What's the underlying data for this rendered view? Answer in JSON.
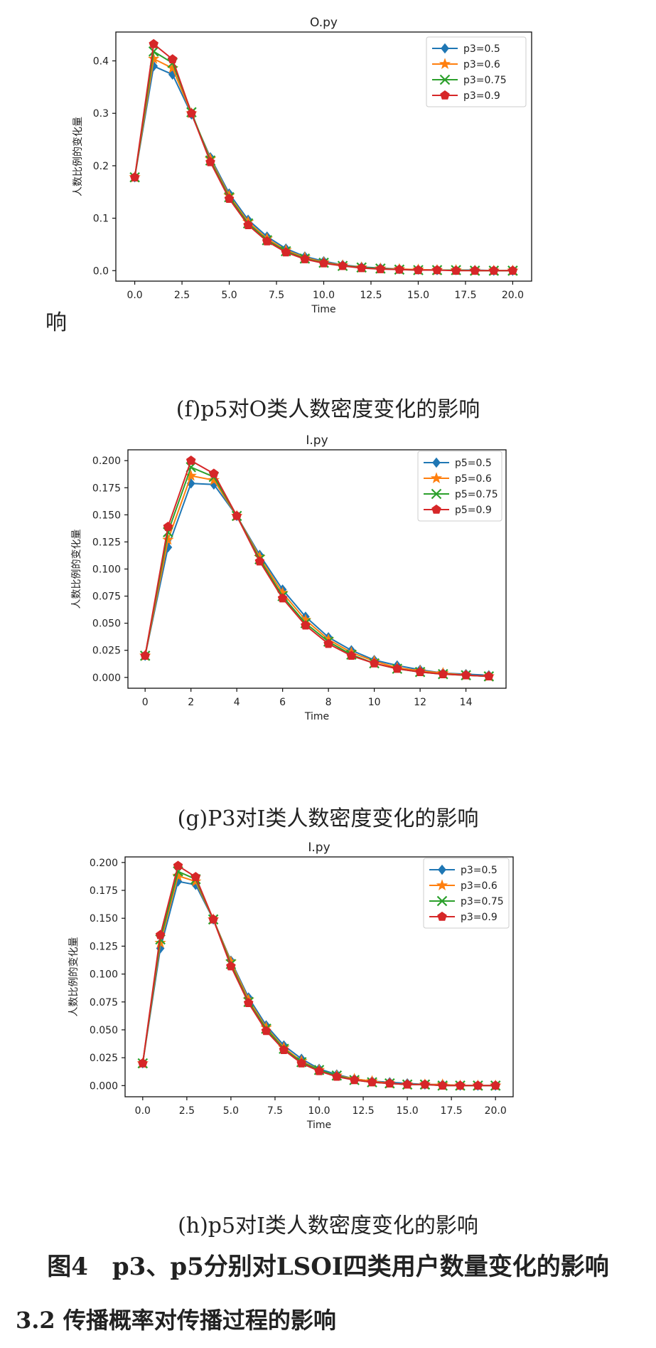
{
  "page": {
    "fragment": "响",
    "figure_caption": "图4　p3、p5分别对LSOI四类用户数量变化的影响",
    "section_heading": "3.2 传播概率对传播过程的影响"
  },
  "colors": {
    "series": [
      "#1f77b4",
      "#ff7f0e",
      "#2ca02c",
      "#d62728"
    ]
  },
  "chart_data": [
    {
      "type": "line",
      "title": "O.py",
      "caption": "(f)p5对O类人数密度变化的影响",
      "xlabel": "Time",
      "ylabel": "人数比例的变化量",
      "xlim": [
        -1,
        21
      ],
      "ylim": [
        -0.02,
        0.455
      ],
      "xticks": [
        0,
        2.5,
        5,
        7.5,
        10,
        12.5,
        15,
        17.5,
        20
      ],
      "xtick_labels": [
        "0.0",
        "2.5",
        "5.0",
        "7.5",
        "10.0",
        "12.5",
        "15.0",
        "17.5",
        "20.0"
      ],
      "yticks": [
        0,
        0.1,
        0.2,
        0.3,
        0.4
      ],
      "ytick_labels": [
        "0.0",
        "0.1",
        "0.2",
        "0.3",
        "0.4"
      ],
      "grid": false,
      "legend_position": "top-right",
      "x": [
        0,
        1,
        2,
        3,
        4,
        5,
        6,
        7,
        8,
        9,
        10,
        11,
        12,
        13,
        14,
        15,
        16,
        17,
        18,
        19,
        20
      ],
      "series": [
        {
          "name": "p3=0.5",
          "marker": "diamond",
          "values": [
            0.178,
            0.39,
            0.374,
            0.298,
            0.216,
            0.147,
            0.097,
            0.065,
            0.042,
            0.027,
            0.018,
            0.011,
            0.007,
            0.005,
            0.003,
            0.002,
            0.001,
            0.001,
            0.001,
            0.0,
            0.0
          ]
        },
        {
          "name": "p3=0.6",
          "marker": "star",
          "values": [
            0.178,
            0.404,
            0.386,
            0.3,
            0.213,
            0.143,
            0.093,
            0.061,
            0.039,
            0.025,
            0.016,
            0.01,
            0.006,
            0.004,
            0.003,
            0.002,
            0.001,
            0.001,
            0.0,
            0.0,
            0.0
          ]
        },
        {
          "name": "p3=0.75",
          "marker": "x",
          "values": [
            0.178,
            0.418,
            0.396,
            0.302,
            0.21,
            0.14,
            0.09,
            0.058,
            0.037,
            0.023,
            0.015,
            0.009,
            0.006,
            0.004,
            0.002,
            0.001,
            0.001,
            0.001,
            0.0,
            0.0,
            0.0
          ]
        },
        {
          "name": "p3=0.9",
          "marker": "pentagon",
          "values": [
            0.178,
            0.432,
            0.403,
            0.3,
            0.207,
            0.137,
            0.087,
            0.056,
            0.035,
            0.022,
            0.014,
            0.009,
            0.005,
            0.003,
            0.002,
            0.001,
            0.001,
            0.0,
            0.0,
            0.0,
            0.0
          ]
        }
      ]
    },
    {
      "type": "line",
      "title": "I.py",
      "caption": "(g)P3对I类人数密度变化的影响",
      "xlabel": "Time",
      "ylabel": "人数比例的变化量",
      "xlim": [
        -0.75,
        15.75
      ],
      "ylim": [
        -0.01,
        0.21
      ],
      "xticks": [
        0,
        2,
        4,
        6,
        8,
        10,
        12,
        14
      ],
      "xtick_labels": [
        "0",
        "2",
        "4",
        "6",
        "8",
        "10",
        "12",
        "14"
      ],
      "yticks": [
        0,
        0.025,
        0.05,
        0.075,
        0.1,
        0.125,
        0.15,
        0.175,
        0.2
      ],
      "ytick_labels": [
        "0.000",
        "0.025",
        "0.050",
        "0.075",
        "0.100",
        "0.125",
        "0.150",
        "0.175",
        "0.200"
      ],
      "grid": false,
      "legend_position": "top-right",
      "x": [
        0,
        1,
        2,
        3,
        4,
        5,
        6,
        7,
        8,
        9,
        10,
        11,
        12,
        13,
        14,
        15
      ],
      "series": [
        {
          "name": "p5=0.5",
          "marker": "diamond",
          "values": [
            0.02,
            0.12,
            0.179,
            0.178,
            0.149,
            0.113,
            0.081,
            0.056,
            0.037,
            0.025,
            0.016,
            0.011,
            0.007,
            0.004,
            0.003,
            0.002
          ]
        },
        {
          "name": "p5=0.6",
          "marker": "star",
          "values": [
            0.02,
            0.127,
            0.186,
            0.182,
            0.149,
            0.111,
            0.078,
            0.053,
            0.035,
            0.023,
            0.015,
            0.009,
            0.006,
            0.004,
            0.002,
            0.001
          ]
        },
        {
          "name": "p5=0.75",
          "marker": "x",
          "values": [
            0.02,
            0.134,
            0.194,
            0.185,
            0.149,
            0.109,
            0.075,
            0.05,
            0.033,
            0.021,
            0.013,
            0.008,
            0.005,
            0.003,
            0.002,
            0.001
          ]
        },
        {
          "name": "p5=0.9",
          "marker": "pentagon",
          "values": [
            0.02,
            0.139,
            0.2,
            0.188,
            0.149,
            0.107,
            0.073,
            0.048,
            0.031,
            0.02,
            0.013,
            0.008,
            0.005,
            0.003,
            0.002,
            0.001
          ]
        }
      ]
    },
    {
      "type": "line",
      "title": "I.py",
      "caption": "(h)p5对I类人数密度变化的影响",
      "xlabel": "Time",
      "ylabel": "人数比例的变化量",
      "xlim": [
        -1,
        21
      ],
      "ylim": [
        -0.01,
        0.205
      ],
      "xticks": [
        0,
        2.5,
        5,
        7.5,
        10,
        12.5,
        15,
        17.5,
        20
      ],
      "xtick_labels": [
        "0.0",
        "2.5",
        "5.0",
        "7.5",
        "10.0",
        "12.5",
        "15.0",
        "17.5",
        "20.0"
      ],
      "yticks": [
        0,
        0.025,
        0.05,
        0.075,
        0.1,
        0.125,
        0.15,
        0.175,
        0.2
      ],
      "ytick_labels": [
        "0.000",
        "0.025",
        "0.050",
        "0.075",
        "0.100",
        "0.125",
        "0.150",
        "0.175",
        "0.200"
      ],
      "grid": false,
      "legend_position": "top-right",
      "x": [
        0,
        1,
        2,
        3,
        4,
        5,
        6,
        7,
        8,
        9,
        10,
        11,
        12,
        13,
        14,
        15,
        16,
        17,
        18,
        19,
        20
      ],
      "series": [
        {
          "name": "p3=0.5",
          "marker": "diamond",
          "values": [
            0.02,
            0.123,
            0.183,
            0.18,
            0.149,
            0.112,
            0.079,
            0.054,
            0.036,
            0.024,
            0.015,
            0.01,
            0.006,
            0.004,
            0.003,
            0.002,
            0.001,
            0.001,
            0.0,
            0.0,
            0.0
          ]
        },
        {
          "name": "p3=0.6",
          "marker": "star",
          "values": [
            0.02,
            0.128,
            0.188,
            0.183,
            0.149,
            0.111,
            0.077,
            0.052,
            0.034,
            0.022,
            0.014,
            0.009,
            0.006,
            0.004,
            0.002,
            0.001,
            0.001,
            0.001,
            0.0,
            0.0,
            0.0
          ]
        },
        {
          "name": "p3=0.75",
          "marker": "x",
          "values": [
            0.02,
            0.131,
            0.192,
            0.185,
            0.149,
            0.109,
            0.075,
            0.051,
            0.033,
            0.021,
            0.014,
            0.009,
            0.005,
            0.003,
            0.002,
            0.001,
            0.001,
            0.0,
            0.0,
            0.0,
            0.0
          ]
        },
        {
          "name": "p3=0.9",
          "marker": "pentagon",
          "values": [
            0.02,
            0.135,
            0.197,
            0.187,
            0.149,
            0.107,
            0.074,
            0.049,
            0.032,
            0.02,
            0.013,
            0.008,
            0.005,
            0.003,
            0.002,
            0.001,
            0.001,
            0.0,
            0.0,
            0.0,
            0.0
          ]
        }
      ]
    }
  ]
}
